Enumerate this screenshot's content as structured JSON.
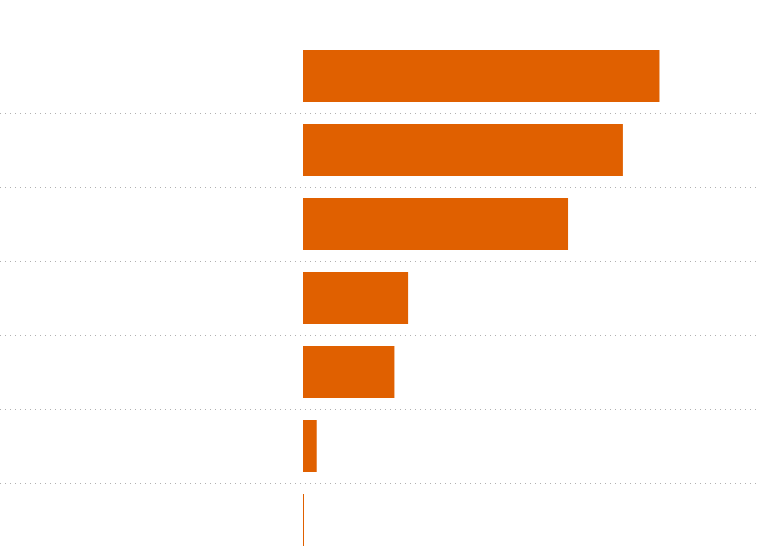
{
  "chart_data": {
    "type": "bar",
    "orientation": "horizontal",
    "categories": [
      null,
      null,
      null,
      null,
      null,
      null,
      null
    ],
    "values": [
      78,
      70,
      58,
      23,
      20,
      3,
      0.2
    ],
    "color": "#e06000",
    "xlim": [
      0,
      100
    ]
  }
}
